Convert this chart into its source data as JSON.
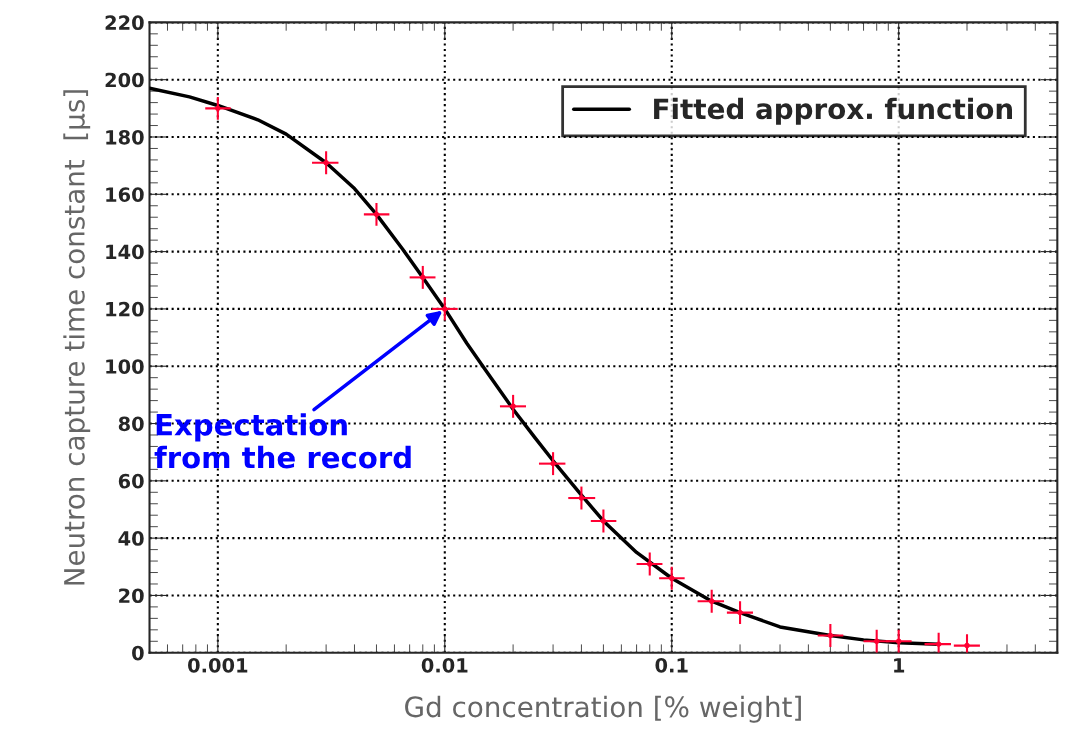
{
  "chart_data": {
    "type": "scatter",
    "xlabel": "Gd concentration [% weight]",
    "ylabel": "Neutron capture time constant  [µs]",
    "log": "x",
    "xlim": [
      0.0005,
      5
    ],
    "xticks": [
      0.001,
      0.01,
      0.1,
      1
    ],
    "ylim": [
      0,
      220
    ],
    "yticks": [
      0,
      20,
      40,
      60,
      80,
      100,
      120,
      140,
      160,
      180,
      200,
      220
    ],
    "grid": true,
    "legend": "top right",
    "series": [
      {
        "color": "#ff0033",
        "marker": "circle",
        "errors": [
          4,
          4,
          4,
          4,
          4,
          4,
          4,
          4,
          4,
          4,
          4,
          4,
          4,
          4,
          4,
          4,
          [
            0,
            7
          ],
          [
            0,
            6.5
          ]
        ],
        "xerrors": [
          [
            0.00088,
            0.00114
          ],
          [
            0.0026,
            0.0034
          ],
          [
            0.0044,
            0.0057
          ],
          [
            0.007,
            0.0091
          ],
          [
            0.0088,
            0.0114
          ],
          [
            0.0175,
            0.0228
          ],
          [
            0.026,
            0.034
          ],
          [
            0.035,
            0.046
          ],
          [
            0.044,
            0.057
          ],
          [
            0.07,
            0.091
          ],
          [
            0.088,
            0.114
          ],
          [
            0.13,
            0.17
          ],
          [
            0.175,
            0.228
          ],
          [
            0.44,
            0.57
          ],
          [
            0.7,
            0.91
          ],
          [
            0.88,
            1.14
          ],
          [
            1.3,
            1.7
          ],
          [
            1.75,
            2.28
          ]
        ],
        "x": [
          0.001,
          0.003,
          0.005,
          0.008,
          0.01,
          0.02,
          0.03,
          0.04,
          0.05,
          0.08,
          0.1,
          0.15,
          0.2,
          0.5,
          0.8,
          1,
          1.5,
          2
        ],
        "values": [
          190,
          171,
          153,
          131,
          120,
          86,
          66,
          54,
          46,
          31,
          26,
          18,
          14,
          6,
          4,
          4,
          3,
          2.5
        ]
      },
      {
        "type": "line",
        "name": "Fitted approx. function",
        "color": "#000000",
        "marker": "none",
        "line_style": "solid",
        "x": [
          0.0005,
          0.00075,
          0.001,
          0.0015,
          0.002,
          0.003,
          0.004,
          0.005,
          0.0065,
          0.008,
          0.01,
          0.0125,
          0.015,
          0.02,
          0.025,
          0.03,
          0.04,
          0.05,
          0.07,
          0.1,
          0.15,
          0.2,
          0.3,
          0.5,
          0.7,
          1,
          1.5
        ],
        "values": [
          197,
          194,
          191,
          186,
          181,
          171,
          162,
          153,
          141,
          131,
          120,
          108,
          99,
          85,
          75,
          67,
          55,
          46,
          35,
          26,
          18,
          14,
          9,
          6,
          4.5,
          3.5,
          3
        ]
      }
    ],
    "annotations": [
      {
        "text": "Expectation\nfrom the record",
        "x": 0.01,
        "y": 120
      }
    ]
  }
}
